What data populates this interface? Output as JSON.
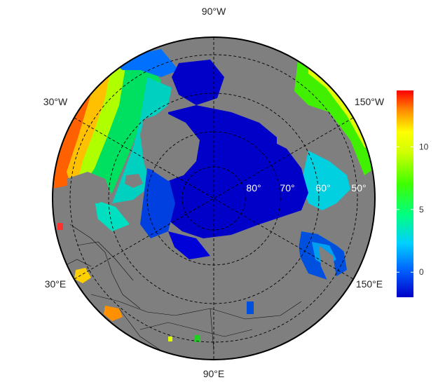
{
  "map": {
    "longitude_labels": {
      "top": "90°W",
      "bottom": "90°E",
      "upper_left": "30°W",
      "lower_left": "30°E",
      "upper_right": "150°W",
      "lower_right": "150°E"
    },
    "latitude_labels": [
      "80°",
      "70°",
      "60°",
      "50°"
    ],
    "colors": {
      "land": "#7f7f7f",
      "frame": "#000000",
      "graticule": "#000000"
    }
  },
  "colorbar": {
    "ticks": [
      "10",
      "5",
      "0"
    ],
    "tick_values": [
      10,
      5,
      0
    ],
    "range": [
      -2,
      14.5
    ],
    "colors": [
      "#0000c8",
      "#0060ff",
      "#00d0ff",
      "#00ff60",
      "#60ff00",
      "#ffff00",
      "#ffa000",
      "#ff0000"
    ]
  }
}
